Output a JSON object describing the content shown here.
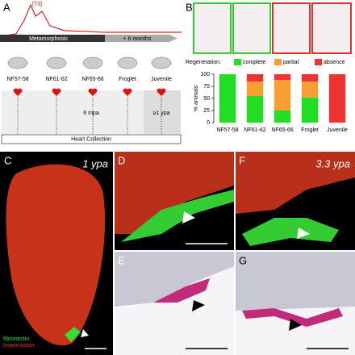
{
  "panel_a": {
    "letter": "A",
    "t3_label": "[T3]",
    "metamorphosis": "Metamorphosis",
    "months": "+ 6 months",
    "stages": [
      "NF57-58",
      "NF61-62",
      "NF65-66",
      "Froglet",
      "Juvenile"
    ],
    "mpa": "6 mpa",
    "ypa": "≥1 ypa",
    "collection": "Heart Collection"
  },
  "chart_data": {
    "type": "bar",
    "stacked": true,
    "letter": "B",
    "legend_title": "Regeneration:",
    "ylabel": "% animals",
    "categories": [
      "NF57-58",
      "NF61-62",
      "NF65-66",
      "Froglet",
      "Juvenile"
    ],
    "series": [
      {
        "name": "complete",
        "color": "#22dd22",
        "values": [
          100,
          55,
          25,
          52,
          0
        ]
      },
      {
        "name": "partial",
        "color": "#f5a030",
        "values": [
          0,
          30,
          63,
          33,
          0
        ]
      },
      {
        "name": "absence",
        "color": "#ee3333",
        "values": [
          0,
          15,
          12,
          15,
          100
        ]
      }
    ],
    "ylim": [
      0,
      100
    ],
    "yticks": [
      0,
      25,
      50,
      75,
      100
    ]
  },
  "panels": {
    "c": {
      "letter": "C",
      "time": "1 ypa",
      "stain1": "fibronectin",
      "stain2": "tropomyosin"
    },
    "d": {
      "letter": "D"
    },
    "e": {
      "letter": "E"
    },
    "f": {
      "letter": "F",
      "time": "3.3 ypa"
    },
    "g": {
      "letter": "G"
    }
  }
}
